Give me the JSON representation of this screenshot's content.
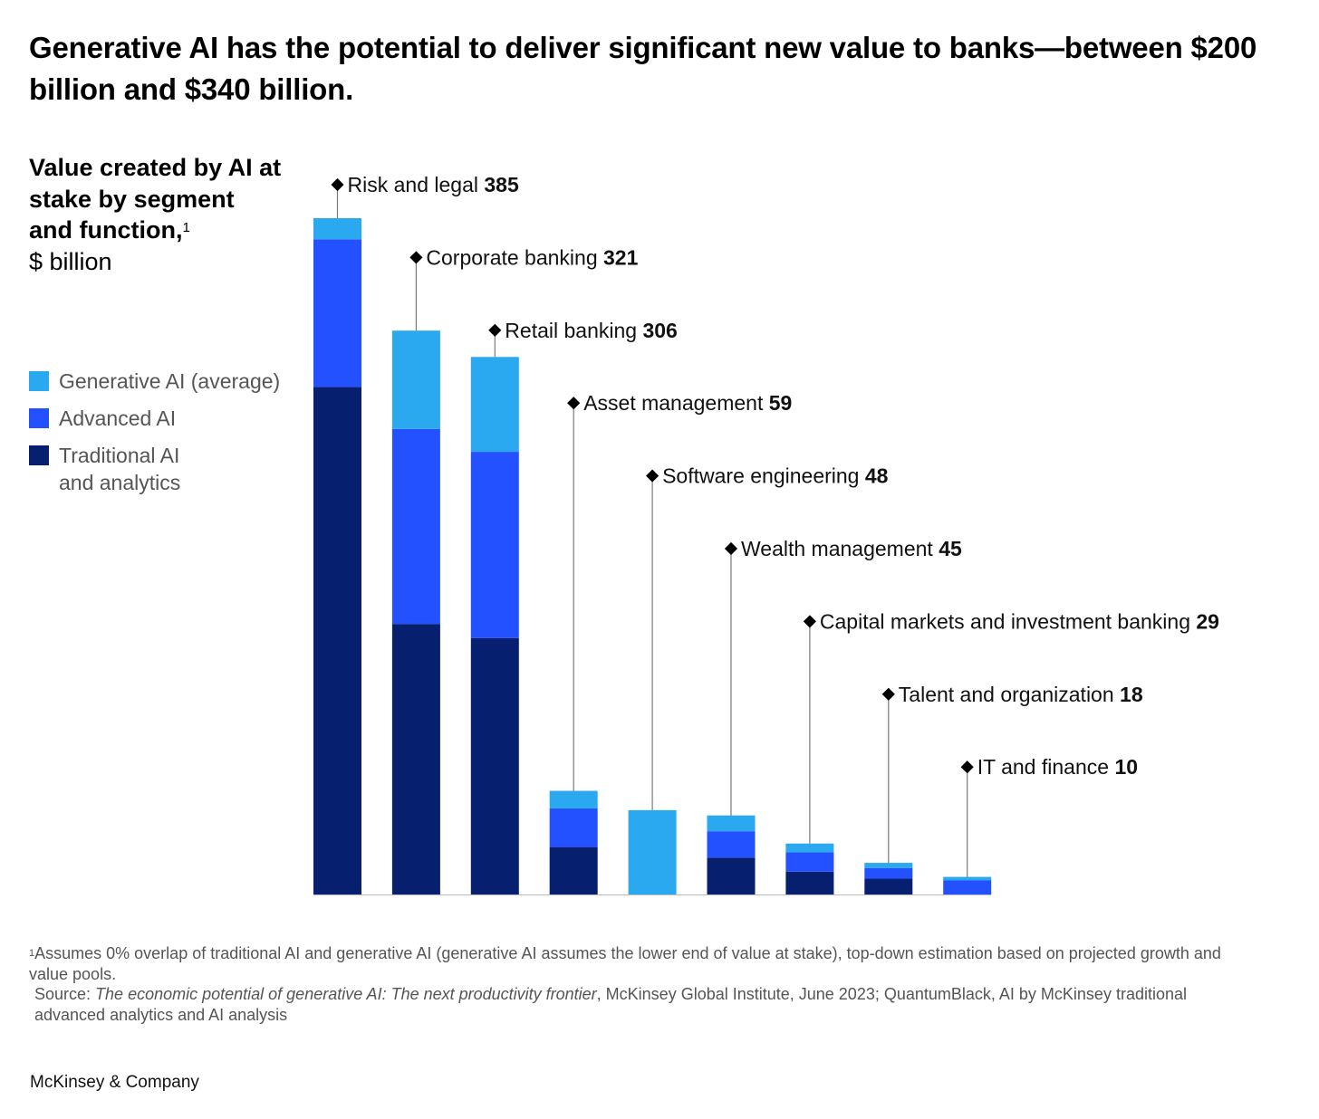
{
  "title": "Generative AI has the potential to deliver significant new value to banks—between $200 billion and $340 billion.",
  "subtitle": {
    "main": "Value created by AI at stake by segment and function,",
    "footnote_marker": "1",
    "unit": "$ billion"
  },
  "legend": [
    {
      "label": "Generative  AI (average)",
      "color": "#2aa8f0"
    },
    {
      "label": "Advanced AI",
      "color": "#2451ff"
    },
    {
      "label": "Traditional AI\nand analytics",
      "color": "#061f6e"
    }
  ],
  "chart_data": {
    "type": "bar",
    "stacked": true,
    "categories": [
      "Risk and legal",
      "Corporate banking",
      "Retail banking",
      "Asset management",
      "Software engineering",
      "Wealth management",
      "Capital markets and investment banking",
      "Talent and organization",
      "IT and finance"
    ],
    "totals": [
      385,
      321,
      306,
      59,
      48,
      45,
      29,
      18,
      10
    ],
    "series": [
      {
        "name": "Traditional AI\nand analytics",
        "color": "#061f6e",
        "values": [
          289,
          154,
          146,
          27,
          0,
          21,
          13,
          9,
          0
        ]
      },
      {
        "name": "Advanced AI",
        "color": "#2451ff",
        "values": [
          84,
          111,
          106,
          22,
          0,
          15,
          11,
          6,
          8
        ]
      },
      {
        "name": "Generative  AI (average)",
        "color": "#2aa8f0",
        "values": [
          12,
          56,
          54,
          10,
          48,
          9,
          5,
          3,
          2
        ]
      }
    ],
    "ylim": [
      0,
      385
    ]
  },
  "footnote": {
    "marker": "1",
    "text": "Assumes 0% overlap of traditional AI and generative AI (generative AI assumes the lower end of value at stake), top-down estimation based on projected growth and value pools.",
    "source_prefix": "Source: ",
    "source_title": "The economic potential of generative AI: The next productivity frontier",
    "source_rest": ", McKinsey Global Institute, June 2023; QuantumBlack, AI by McKinsey traditional advanced analytics and AI analysis"
  },
  "brand": "McKinsey & Company"
}
